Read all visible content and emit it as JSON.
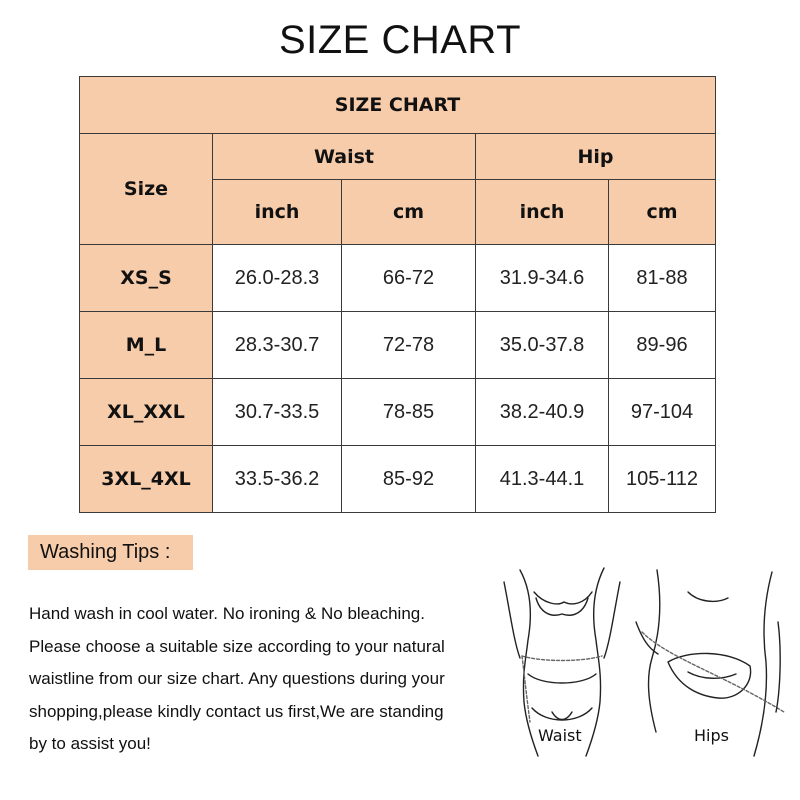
{
  "title": "SIZE CHART",
  "table": {
    "title": "SIZE CHART",
    "size_header": "Size",
    "groups": [
      "Waist",
      "Hip"
    ],
    "units": [
      "inch",
      "cm",
      "inch",
      "cm"
    ],
    "rows": [
      {
        "size": "XS_S",
        "cells": [
          "26.0-28.3",
          "66-72",
          "31.9-34.6",
          "81-88"
        ]
      },
      {
        "size": "M_L",
        "cells": [
          "28.3-30.7",
          "72-78",
          "35.0-37.8",
          "89-96"
        ]
      },
      {
        "size": "XL_XXL",
        "cells": [
          "30.7-33.5",
          "78-85",
          "38.2-40.9",
          "97-104"
        ]
      },
      {
        "size": "3XL_4XL",
        "cells": [
          "33.5-36.2",
          "85-92",
          "41.3-44.1",
          "105-112"
        ]
      }
    ]
  },
  "washing": {
    "label": "Washing Tips :",
    "lines": [
      "Hand wash in cool water. No ironing & No bleaching.",
      "Please choose a suitable size according to your natural",
      "waistline from our size chart. Any questions during your",
      "shopping,please kindly contact us first,We are standing",
      "by to assist you!"
    ]
  },
  "illustration": {
    "labels": [
      "Waist",
      "Hips"
    ]
  },
  "colors": {
    "header_fill": "#f7ccaa",
    "border": "#3a3a3a"
  }
}
